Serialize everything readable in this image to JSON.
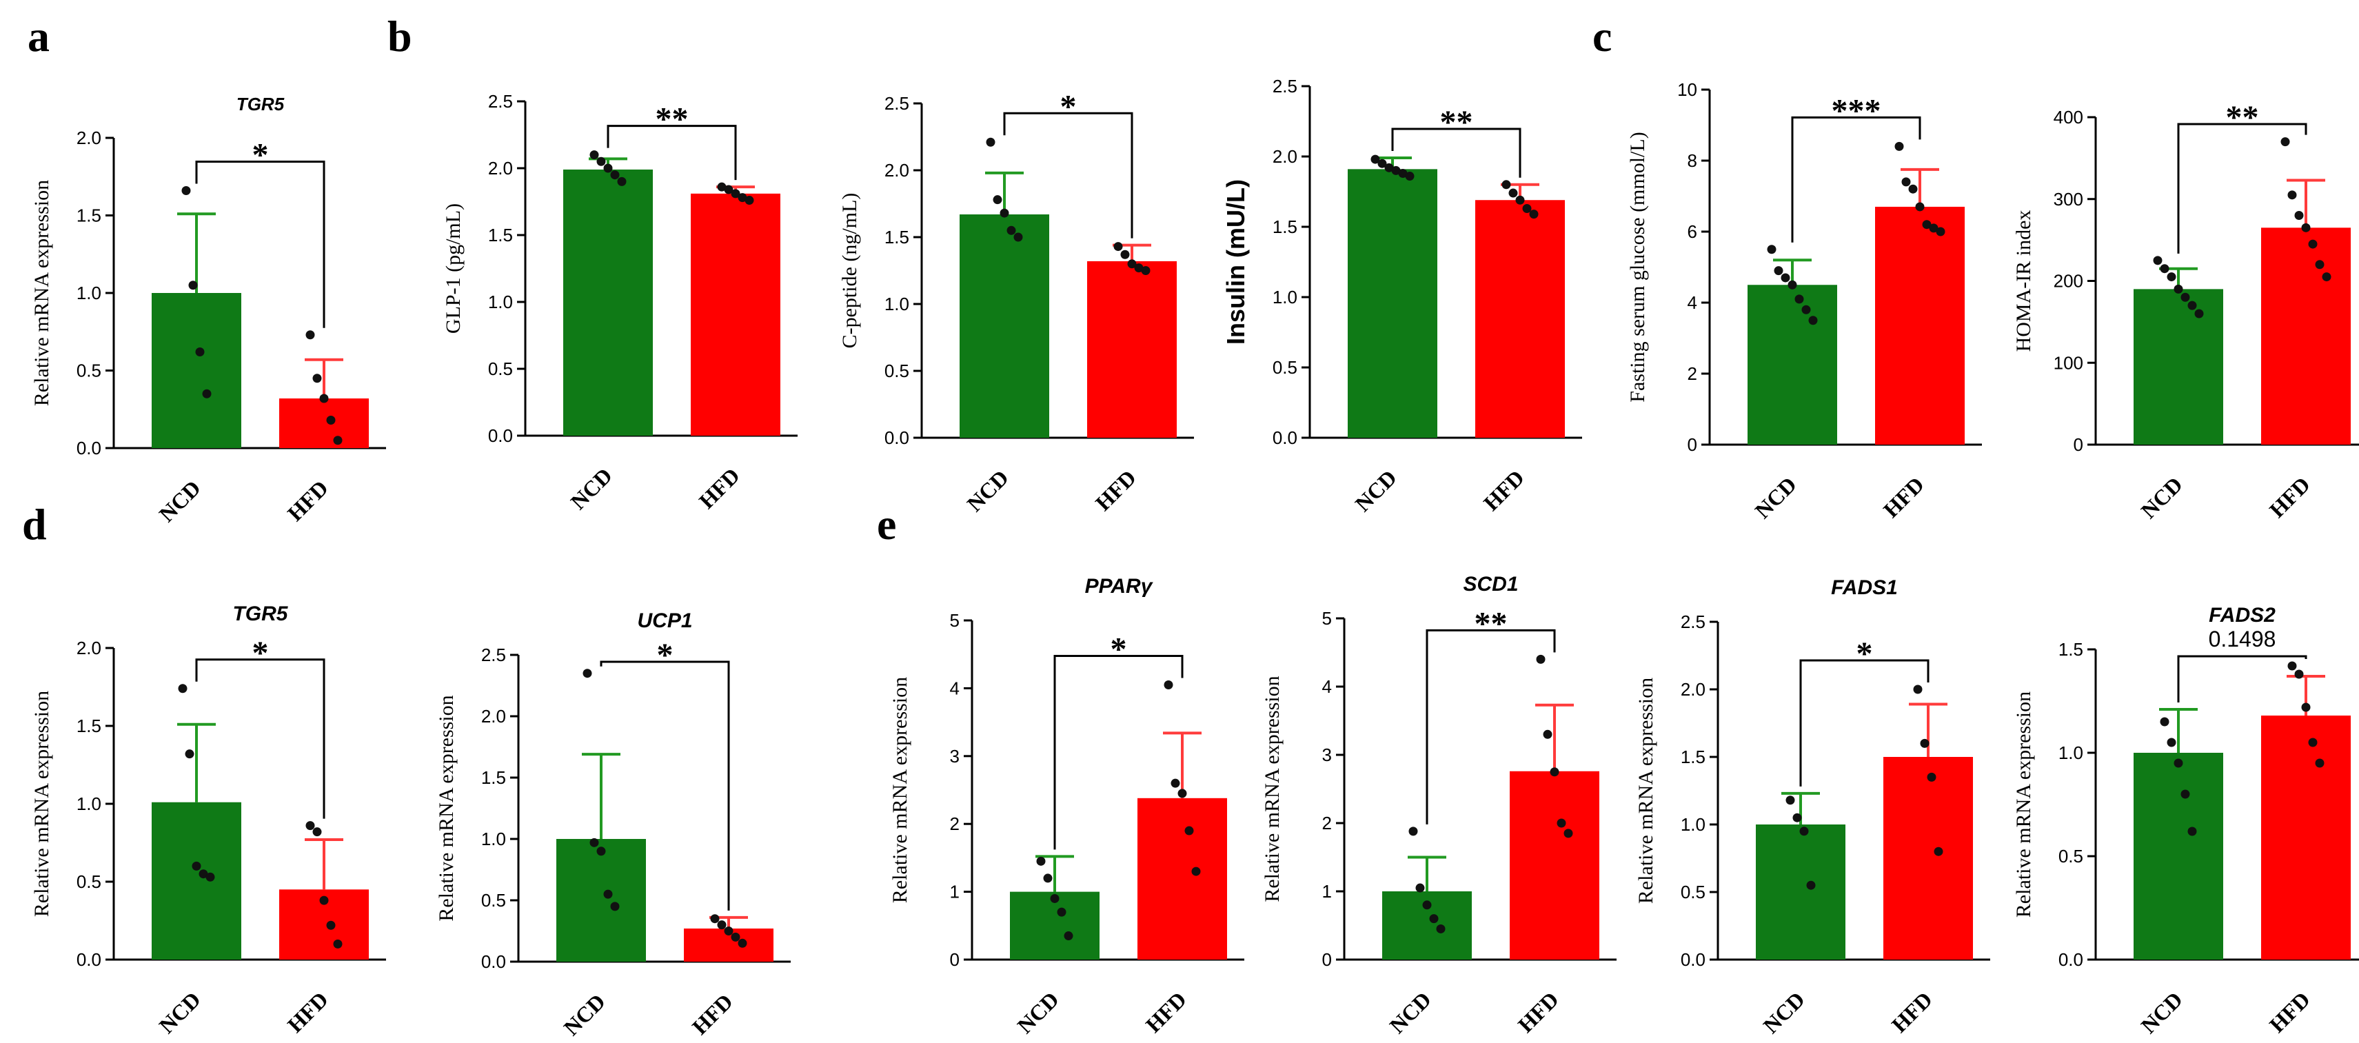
{
  "panel_letters": [
    "a",
    "b",
    "c",
    "d",
    "e"
  ],
  "colors": {
    "ncd": "#0f7a16",
    "hfd": "#ff0000",
    "ncd_err": "#229a22",
    "hfd_err": "#ff3b3b",
    "dot": "#111111",
    "axis": "#000000"
  },
  "chart_data": [
    {
      "id": "a-tgr5",
      "type": "bar",
      "title": "TGR5",
      "title_italic": true,
      "categories": [
        "NCD",
        "HFD"
      ],
      "values": [
        1.0,
        0.32
      ],
      "errors": [
        0.51,
        0.25
      ],
      "ylabel": "Relative mRNA expression",
      "ylabel_sans": false,
      "ylim": [
        0,
        2.0
      ],
      "yticks": [
        "0.0",
        "0.5",
        "1.0",
        "1.5",
        "2.0"
      ],
      "significance": "*",
      "points": [
        [
          1.66,
          1.05,
          0.62,
          0.35
        ],
        [
          0.73,
          0.45,
          0.32,
          0.18,
          0.05
        ]
      ]
    },
    {
      "id": "b-glp1",
      "type": "bar",
      "title": "",
      "categories": [
        "NCD",
        "HFD"
      ],
      "values": [
        1.99,
        1.81
      ],
      "errors": [
        0.08,
        0.05
      ],
      "ylabel": "GLP-1 (pg/mL)",
      "ylabel_sans": false,
      "ylim": [
        0,
        2.5
      ],
      "yticks": [
        "0.0",
        "0.5",
        "1.0",
        "1.5",
        "2.0",
        "2.5"
      ],
      "significance": "**",
      "points": [
        [
          2.1,
          2.05,
          2.0,
          1.95,
          1.9
        ],
        [
          1.86,
          1.84,
          1.81,
          1.78,
          1.76
        ]
      ]
    },
    {
      "id": "b-cpeptide",
      "type": "bar",
      "title": "",
      "categories": [
        "NCD",
        "HFD"
      ],
      "values": [
        1.67,
        1.32
      ],
      "errors": [
        0.31,
        0.12
      ],
      "ylabel": "C-peptide (ng/mL)",
      "ylabel_sans": false,
      "ylim": [
        0,
        2.5
      ],
      "yticks": [
        "0.0",
        "0.5",
        "1.0",
        "1.5",
        "2.0",
        "2.5"
      ],
      "significance": "*",
      "points": [
        [
          2.21,
          1.78,
          1.68,
          1.55,
          1.5
        ],
        [
          1.43,
          1.37,
          1.3,
          1.27,
          1.25
        ]
      ]
    },
    {
      "id": "b-insulin",
      "type": "bar",
      "title": "",
      "categories": [
        "NCD",
        "HFD"
      ],
      "values": [
        1.91,
        1.69
      ],
      "errors": [
        0.08,
        0.11
      ],
      "ylabel": "Insulin (mU/L)",
      "ylabel_sans": true,
      "ylim": [
        0,
        2.5
      ],
      "yticks": [
        "0.0",
        "0.5",
        "1.0",
        "1.5",
        "2.0",
        "2.5"
      ],
      "significance": "**",
      "points": [
        [
          1.98,
          1.95,
          1.92,
          1.9,
          1.88,
          1.86
        ],
        [
          1.8,
          1.74,
          1.69,
          1.63,
          1.59
        ]
      ]
    },
    {
      "id": "c-glucose",
      "type": "bar",
      "title": "",
      "categories": [
        "NCD",
        "HFD"
      ],
      "values": [
        4.5,
        6.7
      ],
      "errors": [
        0.7,
        1.05
      ],
      "ylabel": "Fasting serum glucose (mmol/L)",
      "ylabel_sans": false,
      "ylim": [
        0,
        10
      ],
      "yticks": [
        "0",
        "2",
        "4",
        "6",
        "8",
        "10"
      ],
      "significance": "***",
      "points": [
        [
          5.5,
          4.9,
          4.7,
          4.5,
          4.1,
          3.8,
          3.5
        ],
        [
          8.4,
          7.4,
          7.2,
          6.7,
          6.2,
          6.1,
          6.0
        ]
      ]
    },
    {
      "id": "c-homa",
      "type": "bar",
      "title": "",
      "categories": [
        "NCD",
        "HFD"
      ],
      "values": [
        190,
        265
      ],
      "errors": [
        25,
        58
      ],
      "ylabel": "HOMA-IR index",
      "ylabel_sans": false,
      "ylim": [
        0,
        400
      ],
      "yticks": [
        "0",
        "100",
        "200",
        "300",
        "400"
      ],
      "significance": "**",
      "points": [
        [
          225,
          215,
          205,
          190,
          180,
          170,
          160
        ],
        [
          370,
          305,
          280,
          265,
          245,
          220,
          205
        ]
      ]
    },
    {
      "id": "d-tgr5",
      "type": "bar",
      "title": "TGR5",
      "title_italic": true,
      "categories": [
        "NCD",
        "HFD"
      ],
      "values": [
        1.01,
        0.45
      ],
      "errors": [
        0.5,
        0.32
      ],
      "ylabel": "Relative mRNA expression",
      "ylabel_sans": false,
      "ylim": [
        0,
        2.0
      ],
      "yticks": [
        "0.0",
        "0.5",
        "1.0",
        "1.5",
        "2.0"
      ],
      "significance": "*",
      "points": [
        [
          1.74,
          1.32,
          0.6,
          0.55,
          0.53
        ],
        [
          0.86,
          0.82,
          0.38,
          0.22,
          0.1
        ]
      ]
    },
    {
      "id": "d-ucp1",
      "type": "bar",
      "title": "UCP1",
      "title_italic": true,
      "categories": [
        "NCD",
        "HFD"
      ],
      "values": [
        1.0,
        0.27
      ],
      "errors": [
        0.69,
        0.09
      ],
      "ylabel": "Relative mRNA expression",
      "ylabel_sans": false,
      "ylim": [
        0,
        2.5
      ],
      "yticks": [
        "0.0",
        "0.5",
        "1.0",
        "1.5",
        "2.0",
        "2.5"
      ],
      "significance": "*",
      "points": [
        [
          2.35,
          0.97,
          0.9,
          0.55,
          0.45
        ],
        [
          0.35,
          0.3,
          0.25,
          0.2,
          0.15
        ]
      ]
    },
    {
      "id": "e-ppar",
      "type": "bar",
      "title": "PPARγ",
      "title_italic": true,
      "categories": [
        "NCD",
        "HFD"
      ],
      "values": [
        1.0,
        2.38
      ],
      "errors": [
        0.52,
        0.96
      ],
      "ylabel": "Relative mRNA expression",
      "ylabel_sans": false,
      "ylim": [
        0,
        5
      ],
      "yticks": [
        "0",
        "1",
        "2",
        "3",
        "4",
        "5"
      ],
      "significance": "*",
      "points": [
        [
          1.45,
          1.2,
          0.9,
          0.7,
          0.35
        ],
        [
          4.05,
          2.6,
          2.45,
          1.9,
          1.3
        ]
      ]
    },
    {
      "id": "e-scd1",
      "type": "bar",
      "title": "SCD1",
      "title_italic": true,
      "categories": [
        "NCD",
        "HFD"
      ],
      "values": [
        1.0,
        2.76
      ],
      "errors": [
        0.5,
        0.97
      ],
      "ylabel": "Relative mRNA expression",
      "ylabel_sans": false,
      "ylim": [
        0,
        5
      ],
      "yticks": [
        "0",
        "1",
        "2",
        "3",
        "4",
        "5"
      ],
      "significance": "**",
      "points": [
        [
          1.88,
          1.05,
          0.8,
          0.6,
          0.45
        ],
        [
          4.4,
          3.3,
          2.75,
          2.0,
          1.85
        ]
      ]
    },
    {
      "id": "e-fads1",
      "type": "bar",
      "title": "FADS1",
      "title_italic": true,
      "categories": [
        "NCD",
        "HFD"
      ],
      "values": [
        1.0,
        1.5
      ],
      "errors": [
        0.23,
        0.39
      ],
      "ylabel": "Relative mRNA expression",
      "ylabel_sans": false,
      "ylim": [
        0,
        2.5
      ],
      "yticks": [
        "0.0",
        "0.5",
        "1.0",
        "1.5",
        "2.0",
        "2.5"
      ],
      "significance": "*",
      "points": [
        [
          1.18,
          1.05,
          0.95,
          0.55
        ],
        [
          2.0,
          1.6,
          1.35,
          0.8
        ]
      ]
    },
    {
      "id": "e-fads2",
      "type": "bar",
      "title": "FADS2",
      "title_italic": true,
      "categories": [
        "NCD",
        "HFD"
      ],
      "values": [
        1.0,
        1.18
      ],
      "errors": [
        0.21,
        0.19
      ],
      "ylabel": "Relative mRNA expression",
      "ylabel_sans": false,
      "ylim": [
        0,
        1.5
      ],
      "yticks": [
        "0.0",
        "0.5",
        "1.0",
        "1.5"
      ],
      "significance": "0.1498",
      "significance_sans": true,
      "points": [
        [
          1.15,
          1.05,
          0.95,
          0.8,
          0.62
        ],
        [
          1.42,
          1.38,
          1.22,
          1.05,
          0.95
        ]
      ]
    }
  ]
}
